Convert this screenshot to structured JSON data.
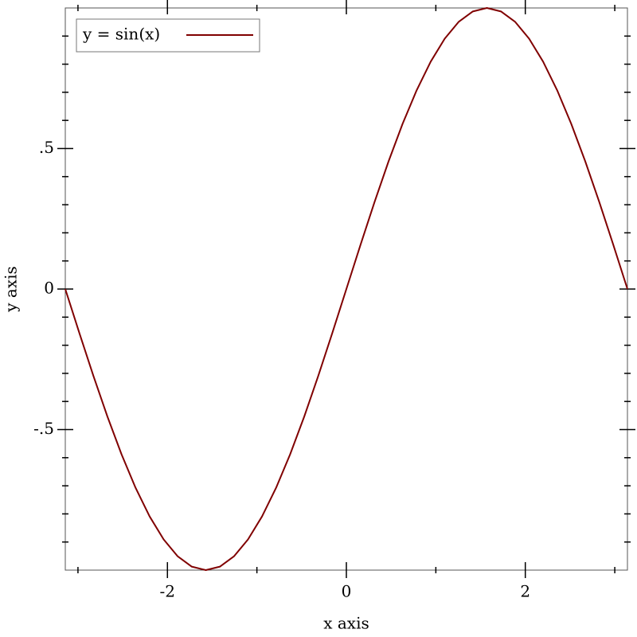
{
  "chart_data": {
    "type": "line",
    "x": [
      -3.1416,
      -2.9845,
      -2.8274,
      -2.6704,
      -2.5133,
      -2.3562,
      -2.1991,
      -2.042,
      -1.885,
      -1.7279,
      -1.5708,
      -1.4137,
      -1.2566,
      -1.0996,
      -0.9425,
      -0.7854,
      -0.6283,
      -0.4712,
      -0.3142,
      -0.1571,
      0,
      0.1571,
      0.3142,
      0.4712,
      0.6283,
      0.7854,
      0.9425,
      1.0996,
      1.2566,
      1.4137,
      1.5708,
      1.7279,
      1.885,
      2.042,
      2.1991,
      2.3562,
      2.5133,
      2.6704,
      2.8274,
      2.9845,
      3.1416
    ],
    "series": [
      {
        "name": "y = sin(x)",
        "color": "#800000",
        "values": [
          0,
          -0.1564,
          -0.309,
          -0.454,
          -0.5878,
          -0.7071,
          -0.809,
          -0.891,
          -0.9511,
          -0.9877,
          -1,
          -0.9877,
          -0.9511,
          -0.891,
          -0.809,
          -0.7071,
          -0.5878,
          -0.454,
          -0.309,
          -0.1564,
          0,
          0.1564,
          0.309,
          0.454,
          0.5878,
          0.7071,
          0.809,
          0.891,
          0.9511,
          0.9877,
          1,
          0.9877,
          0.9511,
          0.891,
          0.809,
          0.7071,
          0.5878,
          0.454,
          0.309,
          0.1564,
          0
        ]
      }
    ],
    "x_label": "x axis",
    "y_label": "y axis",
    "xlim": [
      -3.1416,
      3.1416
    ],
    "ylim": [
      -1,
      1
    ],
    "xticks": [
      -2,
      0,
      2
    ],
    "xticks_minor": [
      -3,
      -1,
      1,
      3
    ],
    "yticks": [
      {
        "value": -0.5,
        "label": "-.5"
      },
      0,
      {
        "value": 0.5,
        "label": ".5"
      }
    ],
    "yticks_minor": [
      -0.9,
      -0.8,
      -0.7,
      -0.6,
      -0.4,
      -0.3,
      -0.2,
      -0.1,
      0.1,
      0.2,
      0.3,
      0.4,
      0.6,
      0.7,
      0.8,
      0.9
    ],
    "legend": "top-left"
  }
}
